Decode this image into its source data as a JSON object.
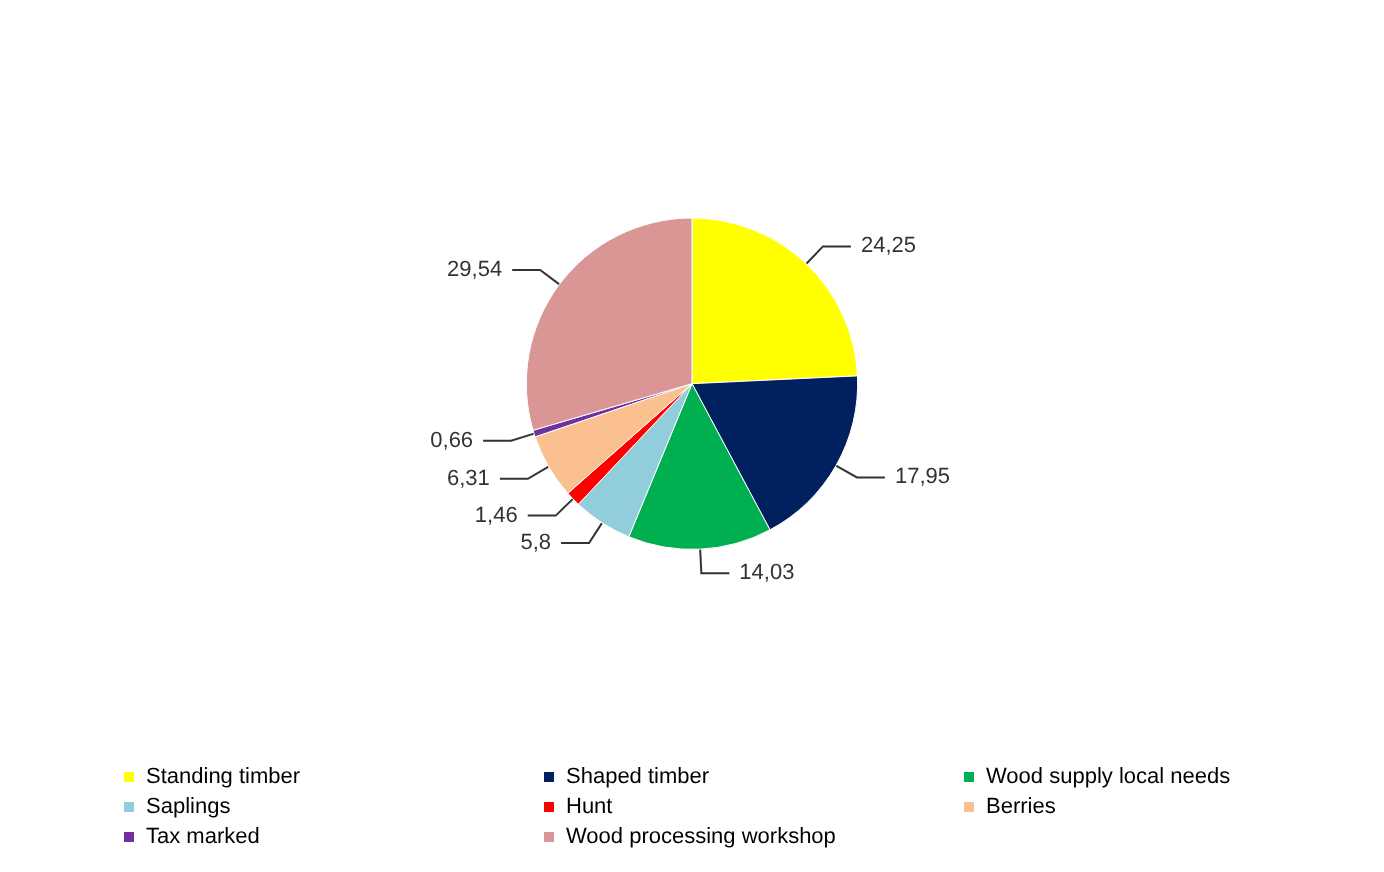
{
  "chart_data": {
    "type": "pie",
    "categories": [
      "Standing timber",
      "Shaped timber",
      "Wood supply local needs",
      "Saplings",
      "Hunt",
      "Berries",
      "Tax marked",
      "Wood processing workshop"
    ],
    "values": [
      24.25,
      17.95,
      14.03,
      5.8,
      1.46,
      6.31,
      0.66,
      29.54
    ],
    "colors": [
      "#ffff00",
      "#002060",
      "#00b050",
      "#92cddc",
      "#ff0000",
      "#fac090",
      "#7030a0",
      "#d99694"
    ],
    "value_labels": [
      "24,25",
      "17,95",
      "14,03",
      "5,8",
      "1,46",
      "6,31",
      "0,66",
      "29,54"
    ],
    "legend": "bottom"
  }
}
